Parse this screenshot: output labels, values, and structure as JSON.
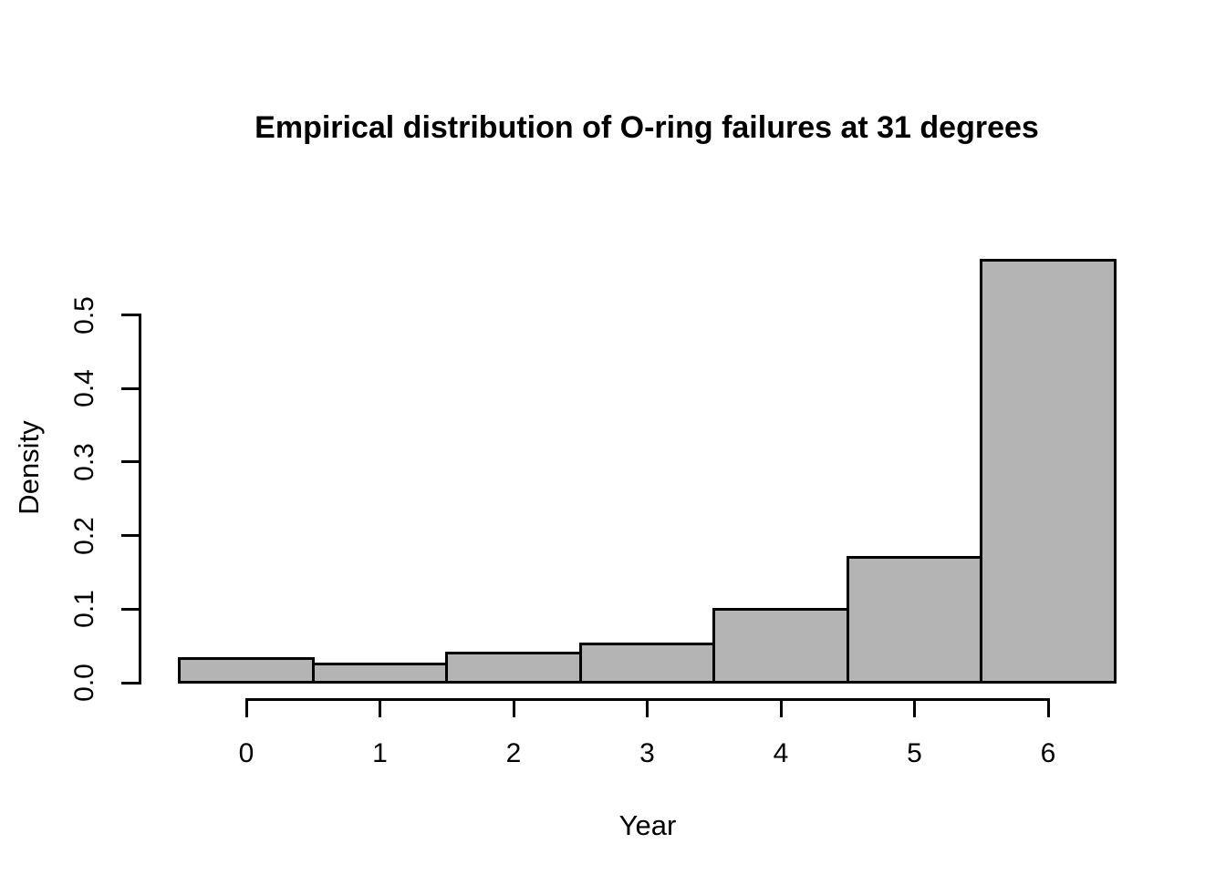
{
  "chart_data": {
    "type": "bar",
    "subtype": "histogram",
    "title": "Empirical distribution of O-ring failures at 31 degrees",
    "xlabel": "Year",
    "ylabel": "Density",
    "categories": [
      0,
      1,
      2,
      3,
      4,
      5,
      6
    ],
    "values": [
      0.033,
      0.025,
      0.04,
      0.053,
      0.1,
      0.171,
      0.574
    ],
    "bin_width": 1,
    "x_ticks": [
      "0",
      "1",
      "2",
      "3",
      "4",
      "5",
      "6"
    ],
    "y_ticks": [
      "0.0",
      "0.1",
      "0.2",
      "0.3",
      "0.4",
      "0.5"
    ],
    "xlim": [
      -0.5,
      6.5
    ],
    "ylim": [
      0,
      0.585
    ],
    "y_axis_max_tick": 0.5,
    "grid": false,
    "legend": null,
    "colors": {
      "bar_fill": "#b4b4b4",
      "bar_border": "#000000",
      "axis": "#000000",
      "text": "#000000",
      "background": "#ffffff"
    }
  }
}
